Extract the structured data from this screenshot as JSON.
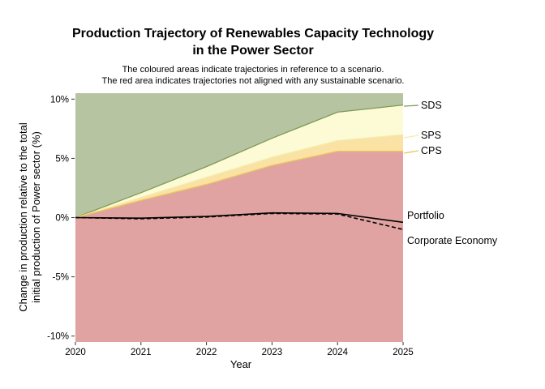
{
  "title": {
    "line1": "Production Trajectory of Renewables Capacity Technology",
    "line2": "in the Power Sector"
  },
  "subtitle": {
    "line1": "The coloured areas indicate trajectories in reference to a scenario.",
    "line2": "The red area indicates trajectories not aligned with any sustainable scenario."
  },
  "chart_data": {
    "type": "area",
    "xlabel": "Year",
    "ylabel_line1": "Change in production relative to the total",
    "ylabel_line2": "initial production of Power sector (%)",
    "x": [
      2020,
      2021,
      2022,
      2023,
      2024,
      2025
    ],
    "xlim": [
      2020,
      2025
    ],
    "ylim": [
      -10.5,
      10.5
    ],
    "xtick_labels": [
      "2020",
      "2021",
      "2022",
      "2023",
      "2024",
      "2025"
    ],
    "ytick_values": [
      10,
      5,
      0,
      -5,
      -10
    ],
    "ytick_labels": [
      "10%",
      "5%",
      "0%",
      "-5%",
      "-10%"
    ],
    "unit": "percent change",
    "grid": false,
    "legend_position": "right-annotations",
    "series": [
      {
        "name": "SDS",
        "kind": "scenario-boundary",
        "values": [
          0,
          2.1,
          4.3,
          6.7,
          8.9,
          9.5
        ],
        "line_color": "#7d9b57",
        "region_fill": "#b6c4a1",
        "region": "above SDS boundary"
      },
      {
        "name": "SPS",
        "kind": "scenario-boundary",
        "values": [
          0,
          1.7,
          3.4,
          5.1,
          6.5,
          7.0
        ],
        "line_color": "#f3eeb0",
        "region_fill": "#fdfad6",
        "region": "between SDS and SPS boundaries"
      },
      {
        "name": "CPS",
        "kind": "scenario-boundary",
        "values": [
          0,
          1.45,
          2.8,
          4.4,
          5.6,
          5.6
        ],
        "line_color": "#eac55c",
        "region_fill": "#f9e2a3",
        "region": "between SPS and CPS boundaries"
      },
      {
        "name": "Not aligned",
        "kind": "region",
        "region_fill": "#e0a3a2",
        "region": "below CPS boundary"
      },
      {
        "name": "Portfolio",
        "kind": "line",
        "style": "solid",
        "line_color": "#000000",
        "values": [
          0,
          -0.05,
          0.1,
          0.4,
          0.35,
          -0.4
        ]
      },
      {
        "name": "Corporate Economy",
        "kind": "line",
        "style": "dashed",
        "line_color": "#000000",
        "values": [
          0,
          -0.1,
          0.05,
          0.35,
          0.3,
          -1.0
        ]
      }
    ]
  }
}
